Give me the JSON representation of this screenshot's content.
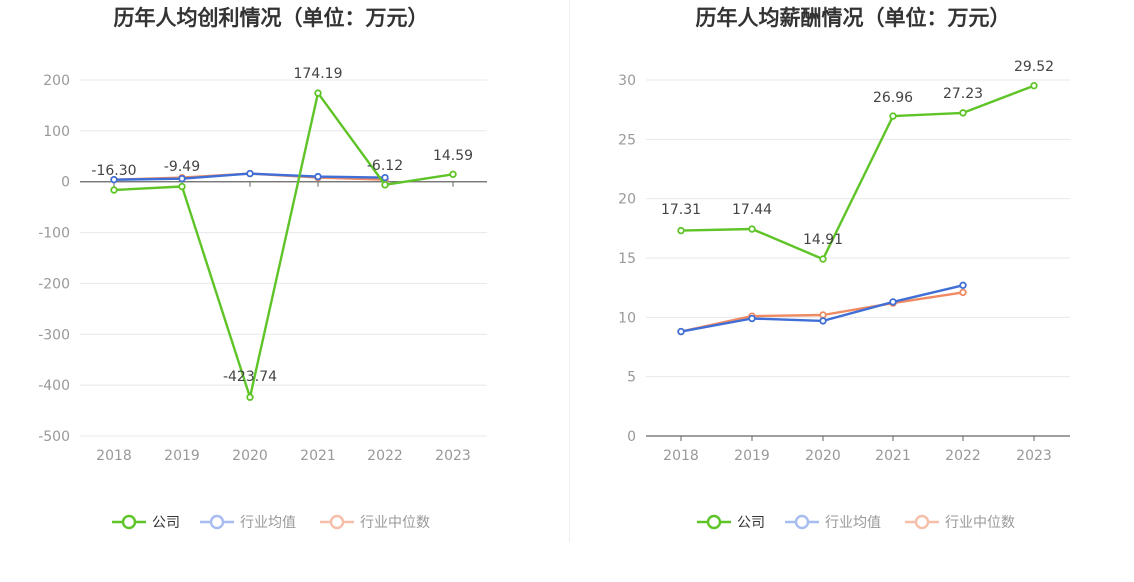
{
  "charts": [
    {
      "id": "profit",
      "chart_data": {
        "type": "line",
        "title": "历年人均创利情况（单位：万元）",
        "categories": [
          "2018",
          "2019",
          "2020",
          "2021",
          "2022",
          "2023"
        ],
        "ylim": [
          -500,
          200
        ],
        "yticks": [
          200,
          100,
          0,
          -100,
          -200,
          -300,
          -400,
          -500
        ],
        "ytick_labels": [
          "200",
          "100",
          "0",
          "-100",
          "-200",
          "-300",
          "-400",
          "-500"
        ],
        "grid": true,
        "legend": "bottom-center",
        "series": [
          {
            "name": "公司",
            "color": "#5ec428",
            "values": [
              -16.3,
              -9.49,
              -423.74,
              174.19,
              -6.12,
              14.59
            ],
            "labels": [
              "-16.30",
              "-9.49",
              "-423.74",
              "174.19",
              "-6.12",
              "14.59"
            ]
          },
          {
            "name": "行业均值",
            "color": "#3f6fd6",
            "values": [
              4,
              6,
              16,
              10,
              8,
              null
            ]
          },
          {
            "name": "行业中位数",
            "color": "#ef8a63",
            "values": [
              4,
              8,
              16,
              8,
              4,
              null
            ]
          }
        ]
      }
    },
    {
      "id": "salary",
      "chart_data": {
        "type": "line",
        "title": "历年人均薪酬情况（单位：万元）",
        "categories": [
          "2018",
          "2019",
          "2020",
          "2021",
          "2022",
          "2023"
        ],
        "ylim": [
          0,
          30
        ],
        "yticks": [
          30,
          25,
          20,
          15,
          10,
          5,
          0
        ],
        "ytick_labels": [
          "30",
          "25",
          "20",
          "15",
          "10",
          "5",
          "0"
        ],
        "grid": true,
        "legend": "bottom-center",
        "series": [
          {
            "name": "公司",
            "color": "#5ec428",
            "values": [
              17.31,
              17.44,
              14.91,
              26.96,
              27.23,
              29.52
            ],
            "labels": [
              "17.31",
              "17.44",
              "14.91",
              "26.96",
              "27.23",
              "29.52"
            ]
          },
          {
            "name": "行业均值",
            "color": "#3f6fd6",
            "values": [
              8.8,
              9.9,
              9.7,
              11.3,
              12.7,
              null
            ]
          },
          {
            "name": "行业中位数",
            "color": "#ef8a63",
            "values": [
              8.8,
              10.1,
              10.2,
              11.2,
              12.1,
              null
            ]
          }
        ]
      }
    }
  ],
  "colors": {
    "grid": "#e6e8ee",
    "axis": "#666666",
    "tick_text": "#999999",
    "label_text": "#444444",
    "title_text": "#333333",
    "legend_series": "#5ec428",
    "legend_avg": "#a7bdf0",
    "legend_median": "#f5bfa9"
  }
}
